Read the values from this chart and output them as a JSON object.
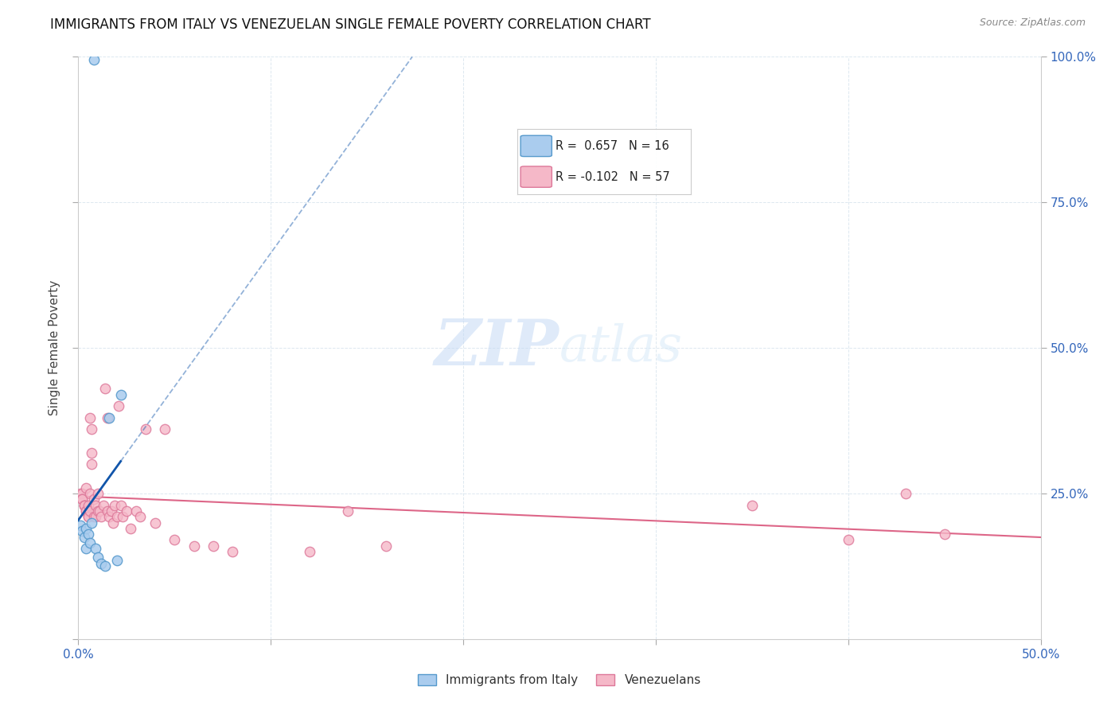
{
  "title": "IMMIGRANTS FROM ITALY VS VENEZUELAN SINGLE FEMALE POVERTY CORRELATION CHART",
  "source": "Source: ZipAtlas.com",
  "ylabel": "Single Female Poverty",
  "legend_italy": "Immigrants from Italy",
  "legend_venezuela": "Venezuelans",
  "legend_r_italy": "R =  0.657",
  "legend_n_italy": "N = 16",
  "legend_r_venezuela": "R = -0.102",
  "legend_n_venezuela": "N = 57",
  "watermark_zip": "ZIP",
  "watermark_atlas": "atlas",
  "italy_color": "#aaccee",
  "italy_edge_color": "#5599cc",
  "venezuela_color": "#f5b8c8",
  "venezuela_edge_color": "#dd7799",
  "italy_trend_color": "#1155aa",
  "venezuela_trend_color": "#dd6688",
  "italy_x": [
    0.001,
    0.002,
    0.003,
    0.004,
    0.004,
    0.005,
    0.006,
    0.007,
    0.008,
    0.009,
    0.01,
    0.012,
    0.014,
    0.016,
    0.02,
    0.022
  ],
  "italy_y": [
    0.195,
    0.185,
    0.175,
    0.19,
    0.155,
    0.18,
    0.165,
    0.2,
    0.995,
    0.155,
    0.14,
    0.13,
    0.125,
    0.38,
    0.135,
    0.42
  ],
  "venezuela_x": [
    0.001,
    0.002,
    0.002,
    0.002,
    0.003,
    0.003,
    0.003,
    0.004,
    0.004,
    0.004,
    0.005,
    0.005,
    0.005,
    0.006,
    0.006,
    0.006,
    0.007,
    0.007,
    0.007,
    0.008,
    0.008,
    0.009,
    0.009,
    0.01,
    0.01,
    0.011,
    0.012,
    0.013,
    0.014,
    0.015,
    0.015,
    0.016,
    0.017,
    0.018,
    0.019,
    0.02,
    0.021,
    0.022,
    0.023,
    0.025,
    0.027,
    0.03,
    0.032,
    0.035,
    0.04,
    0.045,
    0.05,
    0.06,
    0.07,
    0.08,
    0.12,
    0.14,
    0.16,
    0.35,
    0.4,
    0.43,
    0.45
  ],
  "venezuela_y": [
    0.25,
    0.25,
    0.24,
    0.24,
    0.23,
    0.23,
    0.23,
    0.22,
    0.26,
    0.22,
    0.21,
    0.23,
    0.21,
    0.25,
    0.22,
    0.38,
    0.32,
    0.3,
    0.36,
    0.24,
    0.21,
    0.23,
    0.21,
    0.25,
    0.22,
    0.22,
    0.21,
    0.23,
    0.43,
    0.22,
    0.38,
    0.21,
    0.22,
    0.2,
    0.23,
    0.21,
    0.4,
    0.23,
    0.21,
    0.22,
    0.19,
    0.22,
    0.21,
    0.36,
    0.2,
    0.36,
    0.17,
    0.16,
    0.16,
    0.15,
    0.15,
    0.22,
    0.16,
    0.23,
    0.17,
    0.25,
    0.18
  ],
  "xlim": [
    0.0,
    0.5
  ],
  "ylim": [
    0.0,
    1.0
  ],
  "xticks": [
    0.0,
    0.1,
    0.2,
    0.3,
    0.4,
    0.5
  ],
  "yticks": [
    0.25,
    0.5,
    0.75,
    1.0
  ],
  "yticklabels_right": [
    "25.0%",
    "50.0%",
    "75.0%",
    "100.0%"
  ],
  "xticklabels": [
    "0.0%",
    "",
    "",
    "",
    "",
    "50.0%"
  ],
  "grid_color": "#dde8f0",
  "background_color": "#ffffff",
  "title_fontsize": 12,
  "marker_size": 80
}
